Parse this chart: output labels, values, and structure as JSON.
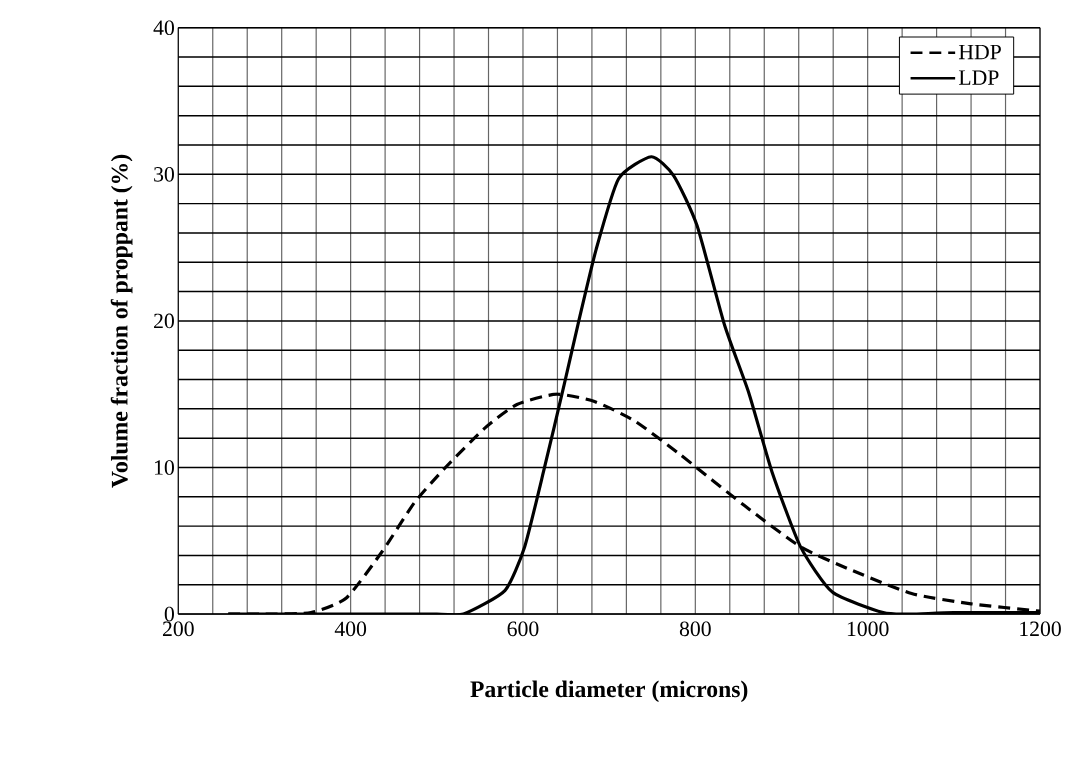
{
  "chart_data": {
    "type": "line",
    "xlabel": "Particle diameter (microns)",
    "ylabel": "Volume fraction of proppant (%)",
    "xlim": [
      200,
      1200
    ],
    "ylim": [
      0,
      40
    ],
    "xticks": [
      200,
      400,
      600,
      800,
      1000,
      1200
    ],
    "yticks": [
      0,
      10,
      20,
      30,
      40
    ],
    "grid": true,
    "legend": "top right",
    "series": [
      {
        "name": "HDP",
        "color": "#000000",
        "line_style": "dashed",
        "x": [
          258,
          300,
          354,
          395,
          437,
          474,
          510,
          556,
          593,
          639,
          683,
          729,
          782,
          857,
          922,
          977,
          1051,
          1120,
          1200
        ],
        "values": [
          0,
          0,
          0.1,
          1.1,
          4.3,
          7.6,
          10,
          12.7,
          14.3,
          15,
          14.5,
          13.2,
          10.9,
          7.4,
          4.6,
          3.1,
          1.4,
          0.7,
          0.2
        ]
      },
      {
        "name": "LDP",
        "color": "#000000",
        "line_style": "solid",
        "x": [
          258,
          400,
          500,
          531,
          579,
          602,
          625,
          648,
          664,
          685,
          711,
          749,
          775,
          802,
          834,
          862,
          889,
          922,
          959,
          1018,
          1050,
          1100,
          1200
        ],
        "values": [
          0,
          0,
          0,
          0,
          1.6,
          4.6,
          10,
          15.7,
          19.8,
          24.9,
          29.7,
          31.2,
          29.9,
          26.5,
          19.7,
          15.1,
          9.7,
          4.6,
          1.5,
          0.1,
          0,
          0.1,
          0.1
        ]
      }
    ]
  }
}
